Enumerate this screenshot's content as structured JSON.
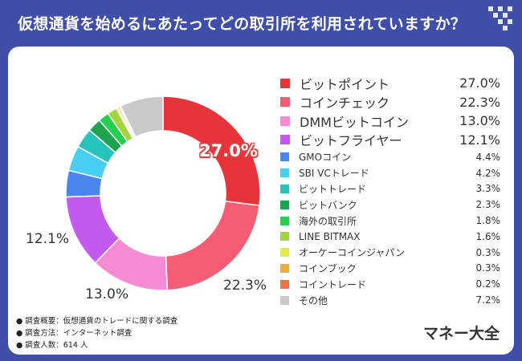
{
  "header": {
    "title": "仮想通貨を始めるにあたってどの取引所を利用されていますか？"
  },
  "colors": {
    "header_bg": "#3f4fa8",
    "card_bg": "#ffffff"
  },
  "chart_data": {
    "type": "pie",
    "style": "donut",
    "title": "仮想通貨を始めるにあたってどの取引所を利用されていますか？",
    "unit": "%",
    "slices": [
      {
        "name": "ビットポイント",
        "value": 27.0,
        "label": "27.0%",
        "color": "#e8333a"
      },
      {
        "name": "コインチェック",
        "value": 22.3,
        "label": "22.3%",
        "color": "#f45c74"
      },
      {
        "name": "DMMビットコイン",
        "value": 13.0,
        "label": "13.0%",
        "color": "#f58bd2"
      },
      {
        "name": "ビットフライヤー",
        "value": 12.1,
        "label": "12.1%",
        "color": "#c35af0"
      },
      {
        "name": "GMOコイン",
        "value": 4.4,
        "label": "4.4%",
        "color": "#4a86ee"
      },
      {
        "name": "SBI VCトレード",
        "value": 4.2,
        "label": "4.2%",
        "color": "#48cdf3"
      },
      {
        "name": "ビットトレード",
        "value": 3.3,
        "label": "3.3%",
        "color": "#27c4bb"
      },
      {
        "name": "ビットバンク",
        "value": 2.3,
        "label": "2.3%",
        "color": "#1ea34f"
      },
      {
        "name": "海外の取引所",
        "value": 1.8,
        "label": "1.8%",
        "color": "#24d04e"
      },
      {
        "name": "LINE BITMAX",
        "value": 1.6,
        "label": "1.6%",
        "color": "#a4d43c"
      },
      {
        "name": "オーケーコインジャパン",
        "value": 0.3,
        "label": "0.3%",
        "color": "#e2ec3c"
      },
      {
        "name": "コインブック",
        "value": 0.3,
        "label": "0.3%",
        "color": "#e9b03a"
      },
      {
        "name": "コイントレード",
        "value": 0.2,
        "label": "0.2%",
        "color": "#f46e47"
      },
      {
        "name": "その他",
        "value": 7.2,
        "label": "7.2%",
        "color": "#c9c9c9"
      }
    ],
    "slice_labels": [
      {
        "text": "27.0%",
        "style": "inside",
        "slice": 0
      },
      {
        "text": "22.3%",
        "style": "outside",
        "slice": 1
      },
      {
        "text": "13.0%",
        "style": "outside",
        "slice": 2
      },
      {
        "text": "12.1%",
        "style": "outside",
        "slice": 3
      }
    ],
    "legend_position": "right"
  },
  "notes": [
    "● 調査概要：仮想通貨のトレードに関する調査",
    "● 調査方法：インターネット調査",
    "● 調査人数：614 人"
  ],
  "brand": "マネー大全"
}
